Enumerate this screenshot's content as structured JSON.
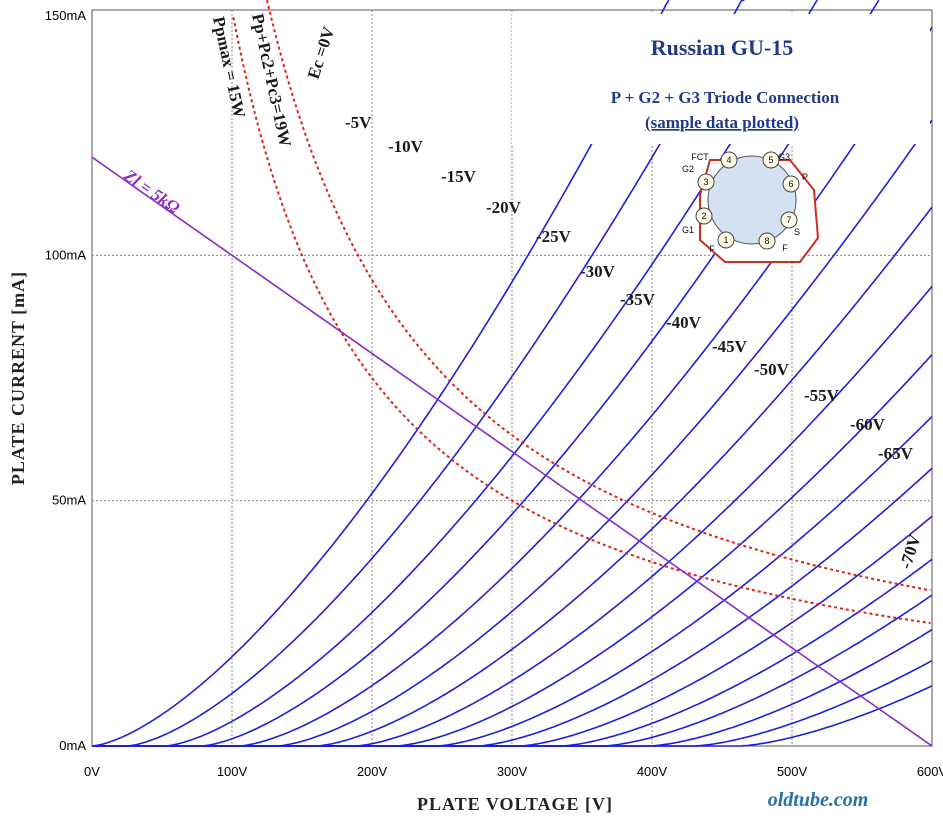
{
  "chart_data": {
    "type": "line",
    "title": "Russian GU-15",
    "subtitle": "P + G2 + G3 Triode Connection",
    "note": "(sample data plotted)",
    "xlabel": "PLATE VOLTAGE [V]",
    "ylabel": "PLATE CURRENT [mA]",
    "xlim": [
      0,
      600
    ],
    "ylim": [
      0,
      150
    ],
    "x_ticks": [
      "0V",
      "100V",
      "200V",
      "300V",
      "400V",
      "500V",
      "600V"
    ],
    "y_ticks": [
      "0mA",
      "50mA",
      "100mA",
      "150mA"
    ],
    "grid": true,
    "watermark": "oldtube.com",
    "grid_curves": [
      {
        "name": "Ec =0V",
        "x0": 0,
        "k": 0.0013
      },
      {
        "name": "-5V",
        "x0": 25,
        "k": 0.00118
      },
      {
        "name": "-10V",
        "x0": 52,
        "k": 0.00108
      },
      {
        "name": "-15V",
        "x0": 78,
        "k": 0.00102
      },
      {
        "name": "-20V",
        "x0": 105,
        "k": 0.00095
      },
      {
        "name": "-25V",
        "x0": 132,
        "k": 0.0009
      },
      {
        "name": "-30V",
        "x0": 160,
        "k": 0.00085
      },
      {
        "name": "-35V",
        "x0": 188,
        "k": 0.0008
      },
      {
        "name": "-40V",
        "x0": 217,
        "k": 0.00076
      },
      {
        "name": "-45V",
        "x0": 246,
        "k": 0.00072
      },
      {
        "name": "-50V",
        "x0": 275,
        "k": 0.00069
      },
      {
        "name": "-55V",
        "x0": 305,
        "k": 0.00066
      },
      {
        "name": "-60V",
        "x0": 335,
        "k": 0.00063
      },
      {
        "name": "-65V",
        "x0": 365,
        "k": 0.00061
      },
      {
        "name": "-70V",
        "x0": 398,
        "k": 0.00059
      }
    ],
    "extra_curves_unlabeled": [
      {
        "x0": 430,
        "k": 0.00056
      },
      {
        "x0": 462,
        "k": 0.00054
      }
    ],
    "power_curves": [
      {
        "name": "Ppmax = 15W",
        "watts": 15
      },
      {
        "name": "Pp+Pc2+Pc3=19W",
        "watts": 19
      }
    ],
    "load_line": {
      "name": "Zl = 5kΩ",
      "points": [
        [
          0,
          120
        ],
        [
          600,
          0
        ]
      ]
    },
    "colors": {
      "grid_curve": "#1f1fd6",
      "power_curve": "#e0201a",
      "load_line": "#8a2bc2",
      "title": "#1f3a8a",
      "grid": "#8a8a8a"
    },
    "socket_diagram": {
      "pins": [
        "1",
        "2",
        "3",
        "4",
        "5",
        "6",
        "7",
        "8"
      ],
      "labels": [
        "FCT",
        "G3",
        "G2",
        "P",
        "G1",
        "S",
        "F",
        "F"
      ]
    }
  }
}
